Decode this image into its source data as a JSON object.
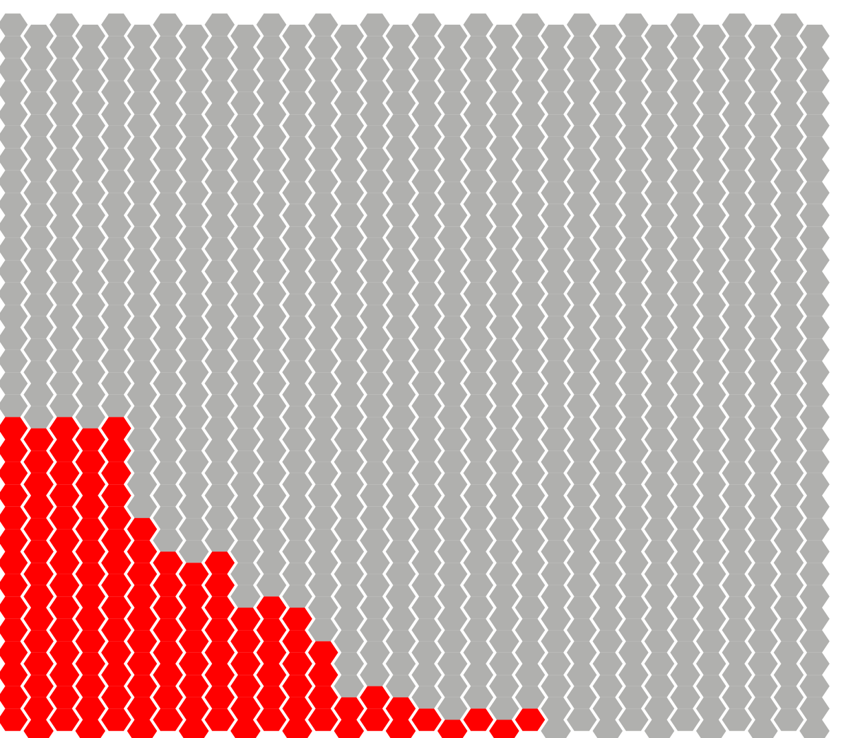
{
  "board": {
    "columns": 32,
    "rows": 32,
    "colors": {
      "empty": "#b0b0ae",
      "filled": "#ff0000",
      "background": "#ffffff"
    },
    "filled_count_per_row_from_bottom": [
      21,
      16,
      13,
      13,
      12,
      12,
      9,
      9,
      6,
      6,
      5,
      5,
      5,
      5,
      0,
      0,
      0,
      0,
      0,
      0,
      0,
      0,
      0,
      0,
      0,
      0,
      0,
      0,
      0,
      0,
      0,
      0
    ]
  }
}
